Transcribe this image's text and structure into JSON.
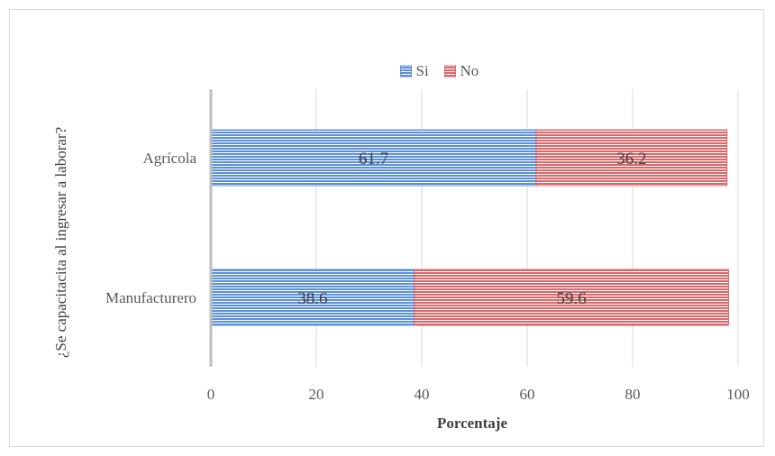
{
  "chart_data": {
    "type": "bar",
    "orientation": "horizontal",
    "stacked": true,
    "categories": [
      "Agrícola",
      "Manufacturero"
    ],
    "series": [
      {
        "name": "Si",
        "values": [
          61.7,
          38.6
        ],
        "color": "#5b8fd8"
      },
      {
        "name": "No",
        "values": [
          36.2,
          59.6
        ],
        "color": "#d9686b"
      }
    ],
    "xlabel": "Porcentaje",
    "ylabel": "¿Se capacitacita al ingresar a laborar?",
    "xlim": [
      0,
      100
    ],
    "xticks": [
      0,
      20,
      40,
      60,
      80,
      100
    ],
    "xtick_labels": [
      "0",
      "20",
      "40",
      "60",
      "80",
      "100"
    ],
    "grid": true,
    "legend_position": "top",
    "bar_pattern": "horizontal-stripes"
  }
}
